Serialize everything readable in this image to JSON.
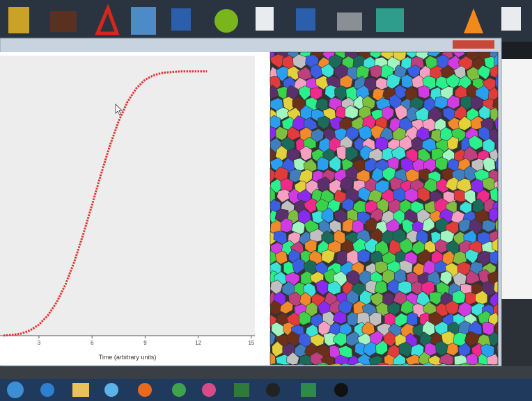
{
  "chart_data": {
    "type": "line",
    "x_label": "Time (arbitrary units)",
    "x": [
      1,
      1.5,
      2,
      2.5,
      3,
      3.5,
      4,
      4.5,
      5,
      5.5,
      6,
      6.5,
      7,
      7.5,
      8,
      8.5,
      9,
      9.5,
      10,
      10.5,
      11,
      11.5,
      12,
      12.5
    ],
    "series": [
      {
        "color": "#e8322f",
        "values": [
          0.0005,
          0.003,
          0.008,
          0.02,
          0.042,
          0.076,
          0.126,
          0.194,
          0.28,
          0.383,
          0.495,
          0.61,
          0.718,
          0.811,
          0.885,
          0.936,
          0.969,
          0.986,
          0.995,
          0.998,
          1.0,
          1.0,
          1.0,
          1.0
        ]
      }
    ],
    "xlim": [
      0.8,
      15.2
    ],
    "xticks": [
      3,
      6,
      9,
      12,
      15
    ],
    "ylim": [
      0,
      1.06
    ]
  }
}
